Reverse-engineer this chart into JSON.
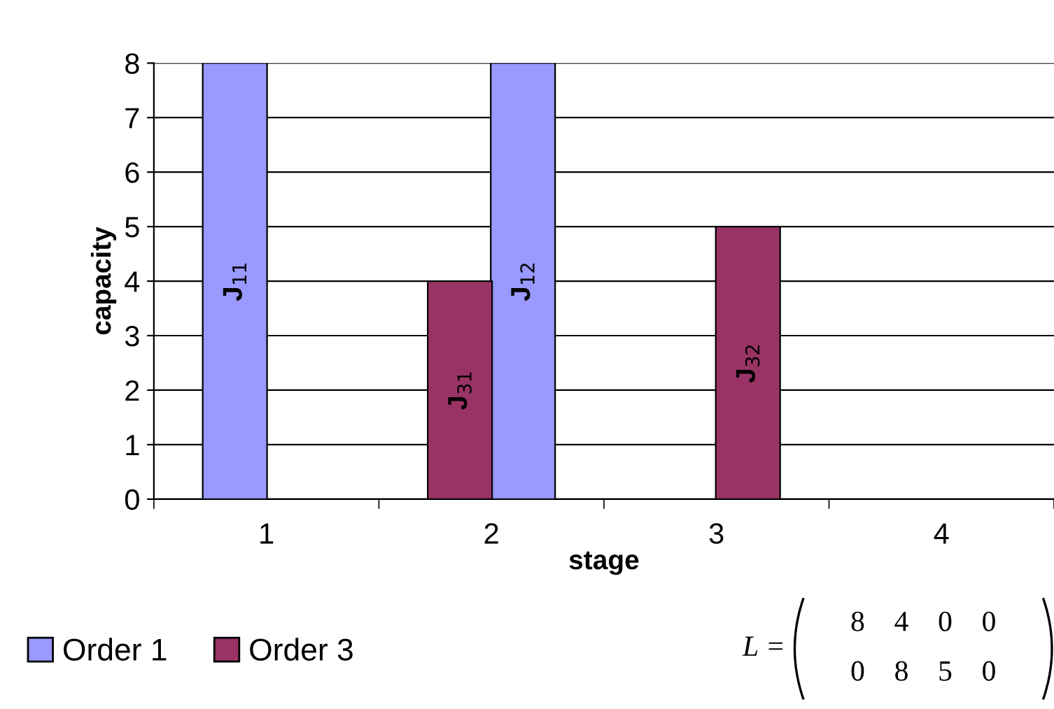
{
  "chart_data": {
    "type": "bar",
    "ylabel": "capacity",
    "xlabel": "stage",
    "xlim": [
      0.5,
      4.5
    ],
    "xticks": [
      1,
      2,
      3,
      4
    ],
    "ylim": [
      0,
      8
    ],
    "yticks": [
      0,
      1,
      2,
      3,
      4,
      5,
      6,
      7,
      8
    ],
    "grid": "y",
    "legend": "bottom left",
    "series": [
      {
        "name": "Order 1",
        "color": "#9999ff",
        "x": [
          0.86,
          2.14
        ],
        "values": [
          8,
          8
        ]
      },
      {
        "name": "Order 3",
        "color": "#993366",
        "x": [
          1.86,
          3.14
        ],
        "values": [
          4,
          5
        ]
      }
    ],
    "annotations": [
      "L =",
      "8    4    0    0",
      "0    8    5    0",
      "J$_{11}$",
      "J$_{12}$",
      "J$_{31}$",
      "J$_{32}$"
    ]
  }
}
